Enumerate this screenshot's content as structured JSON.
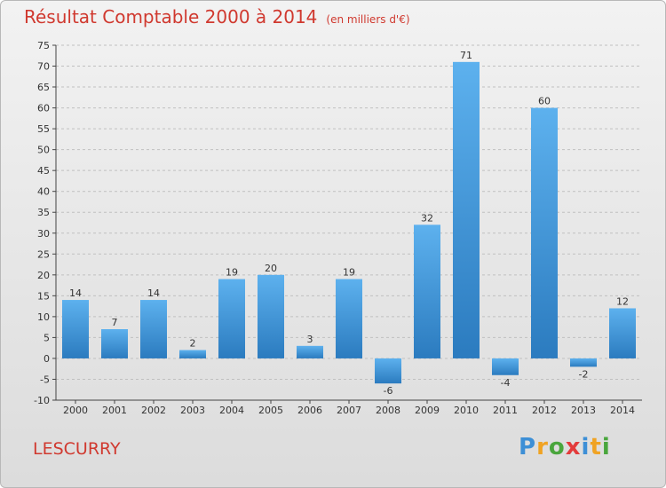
{
  "title": "Résultat Comptable 2000 à 2014",
  "subtitle": "(en milliers d'€)",
  "commune": "LESCURRY",
  "logo": {
    "text": "Proxiti",
    "letters": [
      {
        "char": "P",
        "color": "#3d8fd6"
      },
      {
        "char": "r",
        "color": "#f0a323"
      },
      {
        "char": "o",
        "color": "#4aa63d"
      },
      {
        "char": "x",
        "color": "#e33b3b"
      },
      {
        "char": "i",
        "color": "#3d8fd6"
      },
      {
        "char": "t",
        "color": "#f0a323"
      },
      {
        "char": "i",
        "color": "#4aa63d"
      }
    ]
  },
  "colors": {
    "bar_light": "#5db1ee",
    "bar_dark": "#2b7bbf",
    "grid": "#c0c0c0",
    "title": "#d0392f"
  },
  "chart_data": {
    "type": "bar",
    "categories": [
      "2000",
      "2001",
      "2002",
      "2003",
      "2004",
      "2005",
      "2006",
      "2007",
      "2008",
      "2009",
      "2010",
      "2011",
      "2012",
      "2013",
      "2014"
    ],
    "values": [
      14,
      7,
      14,
      2,
      19,
      20,
      3,
      19,
      -6,
      32,
      71,
      -4,
      60,
      -2,
      12
    ],
    "ylim": [
      -10,
      75
    ],
    "yticks": [
      -10,
      -5,
      0,
      5,
      10,
      15,
      20,
      25,
      30,
      35,
      40,
      45,
      50,
      55,
      60,
      65,
      70,
      75
    ],
    "grid": true,
    "legend": false
  }
}
